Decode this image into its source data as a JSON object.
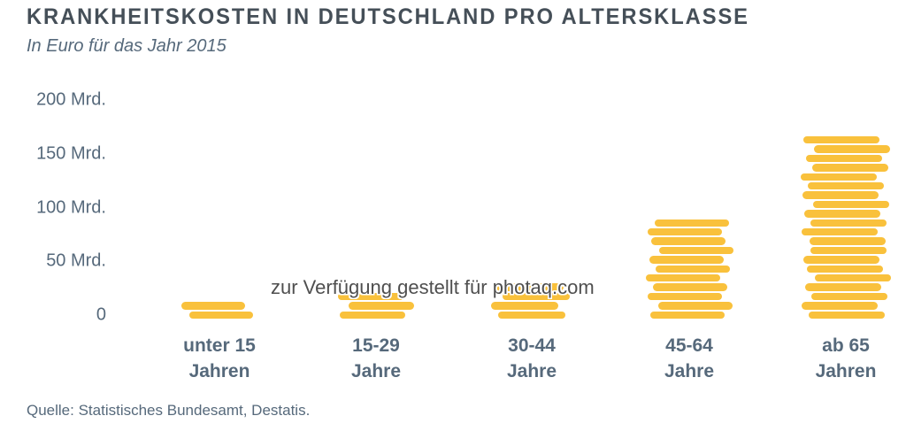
{
  "header": {
    "title": "KRANKHEITSKOSTEN IN DEUTSCHLAND PRO ALTERSKLASSE",
    "subtitle": "In Euro für das Jahr 2015"
  },
  "watermark": "zur Verfügung gestellt für photaq.com",
  "source": "Quelle: Statistisches Bundesamt, Destatis.",
  "colors": {
    "coin": "#F9C13C",
    "title_text": "#454F58",
    "axis_text": "#56697B",
    "watermark_text": "#4F4F4F",
    "background": "#FFFFFF"
  },
  "chart_data": {
    "type": "bar",
    "variant": "coin-stack-pictogram",
    "title": "Krankheitskosten in Deutschland pro Altersklasse",
    "subtitle": "In Euro für das Jahr 2015",
    "unit": "Mrd. Euro",
    "categories": [
      "unter 15 Jahren",
      "15-29 Jahre",
      "30-44 Jahre",
      "45-64 Jahre",
      "ab 65 Jahren"
    ],
    "category_lines": [
      [
        "unter 15",
        "Jahren"
      ],
      [
        "15-29",
        "Jahre"
      ],
      [
        "30-44",
        "Jahre"
      ],
      [
        "45-64",
        "Jahre"
      ],
      [
        "ab 65",
        "Jahren"
      ]
    ],
    "values_mrd_estimate": [
      16,
      25,
      33,
      92,
      170
    ],
    "coins_per_stack": [
      2,
      3,
      4,
      11,
      20
    ],
    "yticks": [
      {
        "value": 0,
        "label": "0"
      },
      {
        "value": 50,
        "label": "50 Mrd."
      },
      {
        "value": 100,
        "label": "100 Mrd."
      },
      {
        "value": 150,
        "label": "150 Mrd."
      },
      {
        "value": 200,
        "label": "200 Mrd."
      }
    ],
    "ylim": [
      0,
      200
    ],
    "grid": false
  }
}
